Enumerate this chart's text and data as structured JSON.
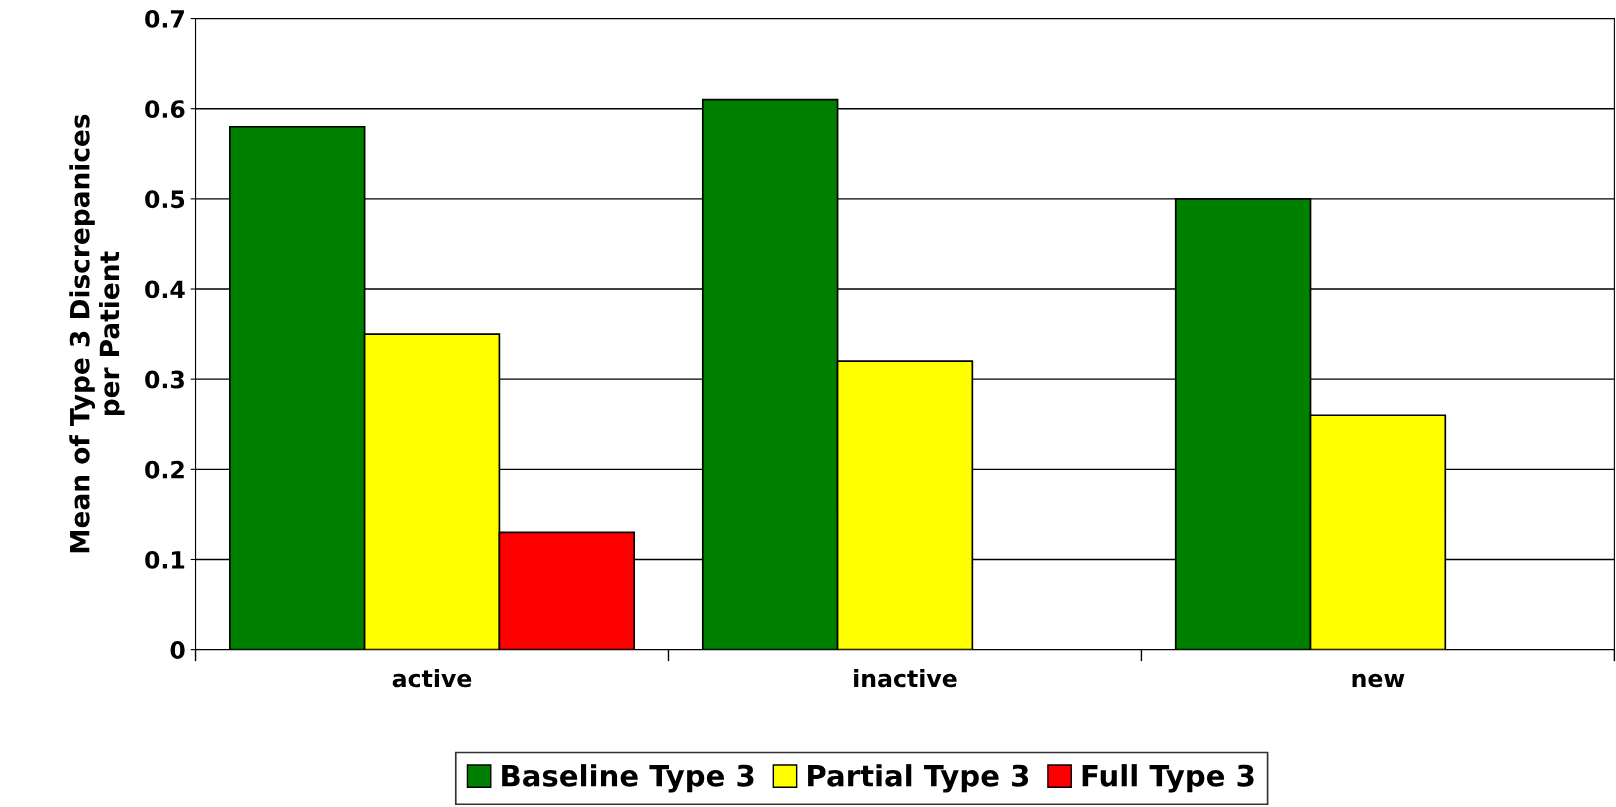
{
  "chart_data": {
    "type": "bar",
    "ylabel": "Mean of Type 3 Discrepanices\nper Patient",
    "categories": [
      "active",
      "inactive",
      "new"
    ],
    "series": [
      {
        "name": "Baseline Type 3",
        "color": "#008000",
        "values": [
          0.58,
          0.61,
          0.5
        ]
      },
      {
        "name": "Partial Type 3",
        "color": "#ffff00",
        "values": [
          0.35,
          0.32,
          0.26
        ]
      },
      {
        "name": "Full Type 3",
        "color": "#ff0000",
        "values": [
          0.13,
          null,
          null
        ]
      }
    ],
    "ylim": [
      0,
      0.7
    ],
    "yticks": [
      {
        "value": 0,
        "label": "0"
      },
      0.1,
      0.2,
      0.3,
      0.4,
      0.5,
      0.6,
      0.7
    ],
    "grid": "y",
    "legend": "bottom"
  }
}
